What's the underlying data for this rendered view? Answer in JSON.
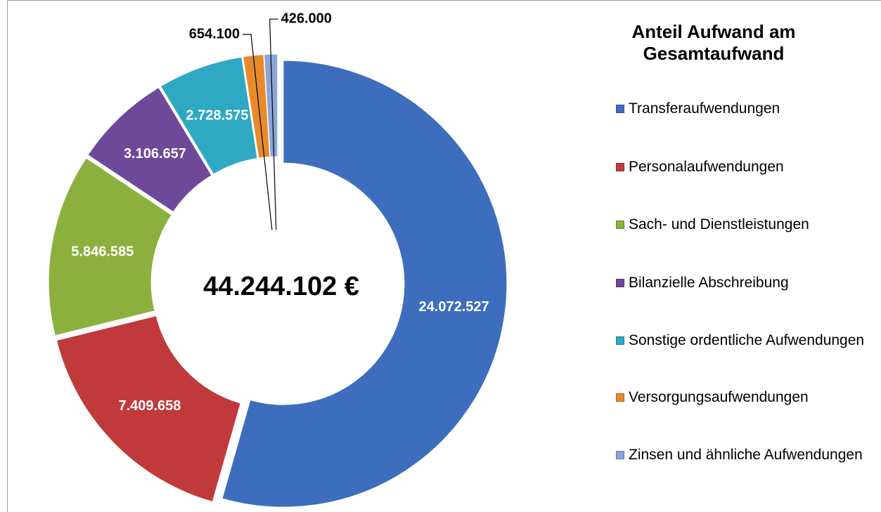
{
  "chart_data": {
    "type": "donut",
    "title": "Anteil Aufwand am Gesamtaufwand",
    "center_label": "44.244.102 €",
    "categories": [
      "Transferaufwendungen",
      "Personalaufwendungen",
      "Sach- und Dienstleistungen",
      "Bilanzielle Abschreibung",
      "Sonstige ordentliche Aufwendungen",
      "Versorgungsaufwendungen",
      "Zinsen und ähnliche Aufwendungen"
    ],
    "values": [
      24072527,
      7409658,
      5846585,
      3106657,
      2728575,
      654100,
      426000
    ],
    "value_labels": [
      "24.072.527",
      "7.409.658",
      "5.846.585",
      "3.106.657",
      "2.728.575",
      "654.100",
      "426.000"
    ],
    "colors": [
      "#3d6ebd",
      "#c13a3b",
      "#8cb03d",
      "#6e4999",
      "#2fa8c4",
      "#e88a2b",
      "#8ba6d6"
    ],
    "legend": "right"
  }
}
